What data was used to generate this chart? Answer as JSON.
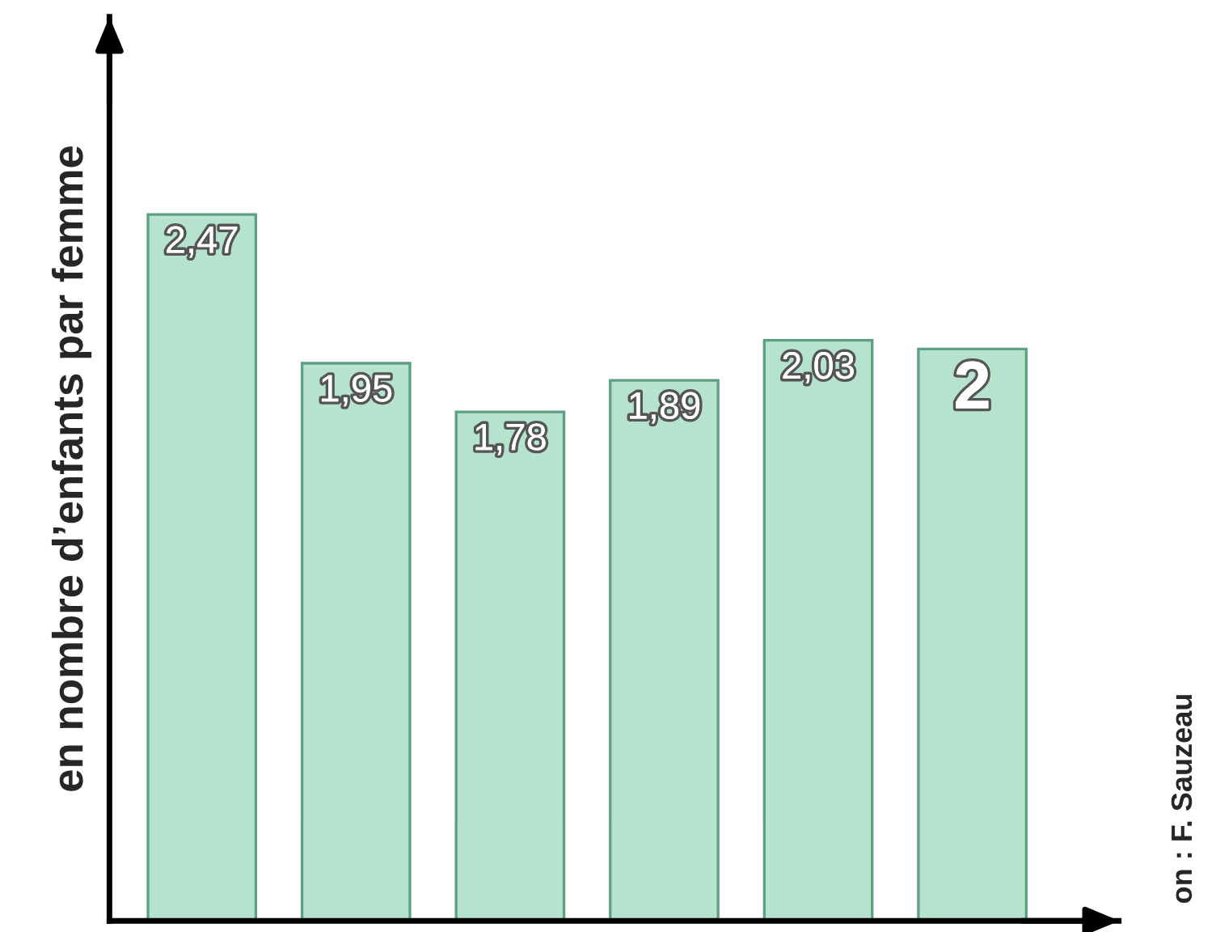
{
  "chart_data": {
    "type": "bar",
    "ylabel": "en nombre d’enfants par femme",
    "categories": [
      null,
      null,
      null,
      null,
      null,
      null
    ],
    "values": [
      2.47,
      1.95,
      1.78,
      1.89,
      2.03,
      2
    ],
    "value_labels": [
      "2,47",
      "1,95",
      "1,78",
      "1,89",
      "2,03",
      "2"
    ],
    "color": "#b5e3cd",
    "annotations": [
      "on : F. Sauzeau"
    ]
  }
}
